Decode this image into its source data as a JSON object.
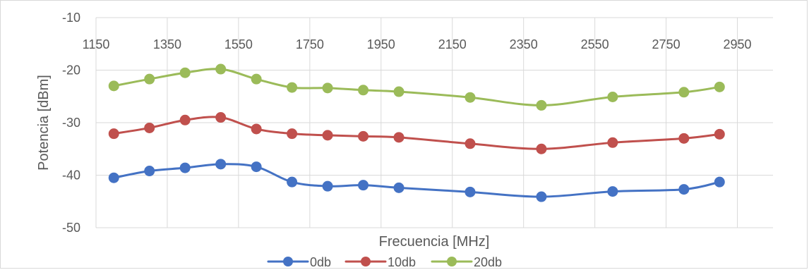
{
  "chart_data": {
    "type": "line",
    "title": "",
    "xlabel": "Frecuencia [MHz]",
    "ylabel": "Potencia [dBm]",
    "xlim": [
      1150,
      3050
    ],
    "ylim": [
      -50,
      -10
    ],
    "x_ticks": [
      "1150",
      "1350",
      "1550",
      "1750",
      "1950",
      "2150",
      "2350",
      "2550",
      "2750",
      "2950"
    ],
    "y_ticks": [
      "-10",
      "-20",
      "-30",
      "-40",
      "-50"
    ],
    "grid": true,
    "legend_position": "bottom",
    "x": [
      1200,
      1300,
      1400,
      1500,
      1600,
      1700,
      1800,
      1900,
      2000,
      2200,
      2400,
      2600,
      2800,
      2900
    ],
    "series": [
      {
        "name": "0db",
        "color": "#4472c4",
        "values": [
          -40.5,
          -39.2,
          -38.6,
          -37.9,
          -38.4,
          -41.3,
          -42.1,
          -41.9,
          -42.4,
          -43.2,
          -44.1,
          -43.1,
          -42.7,
          -41.3
        ]
      },
      {
        "name": "10db",
        "color": "#c0504d",
        "values": [
          -32.1,
          -31.0,
          -29.5,
          -29.0,
          -31.2,
          -32.1,
          -32.4,
          -32.6,
          -32.8,
          -34.0,
          -35.0,
          -33.8,
          -33.0,
          -32.2
        ]
      },
      {
        "name": "20db",
        "color": "#9bbb59",
        "values": [
          -23.0,
          -21.7,
          -20.5,
          -19.8,
          -21.7,
          -23.3,
          -23.4,
          -23.8,
          -24.1,
          -25.2,
          -26.7,
          -25.1,
          -24.2,
          -23.2
        ]
      }
    ]
  }
}
